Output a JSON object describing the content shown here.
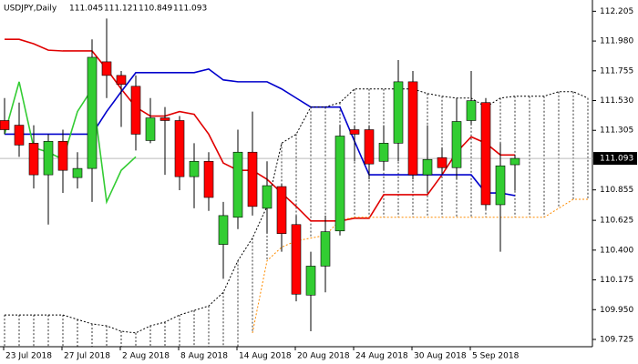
{
  "chart_data": {
    "type": "candlestick",
    "title": "USDJPY,Daily",
    "header_values": [
      111.045,
      111.121,
      110.849,
      111.093
    ],
    "categories": [
      "23 Jul 2018",
      null,
      null,
      null,
      "27 Jul 2018",
      null,
      null,
      null,
      "2 Aug 2018",
      null,
      null,
      null,
      "8 Aug 2018",
      null,
      null,
      null,
      "14 Aug 2018",
      null,
      null,
      null,
      "20 Aug 2018",
      null,
      null,
      null,
      "24 Aug 2018",
      null,
      null,
      null,
      "30 Aug 2018",
      null,
      null,
      null,
      "5 Sep 2018",
      null,
      null,
      null,
      null,
      null,
      null,
      null,
      null
    ],
    "open": [
      111.379,
      111.344,
      111.208,
      110.969,
      111.222,
      110.948,
      111.017,
      111.823,
      111.72,
      111.638,
      111.228,
      111.399,
      111.379,
      110.955,
      111.071,
      110.443,
      110.648,
      111.14,
      110.716,
      110.88,
      110.593,
      110.06,
      110.279,
      110.545,
      111.31,
      111.31,
      111.071,
      111.208,
      111.672,
      110.969,
      111.099,
      111.023,
      111.379,
      111.515,
      110.743,
      111.045,
      null,
      null,
      null,
      null,
      null
    ],
    "high": [
      111.549,
      111.515,
      111.344,
      111.276,
      111.31,
      111.14,
      111.993,
      112.15,
      111.754,
      111.72,
      111.549,
      111.481,
      111.413,
      111.208,
      111.14,
      110.764,
      111.31,
      111.447,
      111.071,
      110.901,
      110.661,
      110.388,
      110.661,
      111.344,
      111.344,
      111.344,
      111.344,
      111.836,
      111.754,
      111.344,
      111.174,
      111.549,
      111.754,
      111.549,
      111.208,
      111.121,
      null,
      null,
      null,
      null,
      null
    ],
    "low": [
      111.276,
      111.105,
      110.866,
      110.593,
      110.832,
      110.866,
      110.764,
      111.549,
      111.331,
      111.153,
      111.208,
      110.969,
      110.853,
      110.716,
      110.696,
      110.183,
      110.559,
      110.661,
      110.525,
      110.388,
      110.013,
      109.787,
      110.081,
      110.511,
      111.071,
      110.935,
      111.003,
      111.071,
      110.935,
      110.832,
      110.969,
      110.935,
      111.344,
      110.709,
      110.388,
      110.849,
      null,
      null,
      null,
      null,
      null
    ],
    "close": [
      111.31,
      111.194,
      110.969,
      111.222,
      111.003,
      111.017,
      111.857,
      111.72,
      111.652,
      111.276,
      111.399,
      111.379,
      110.955,
      111.071,
      110.798,
      110.661,
      111.14,
      110.73,
      110.887,
      110.525,
      110.067,
      110.279,
      110.539,
      111.262,
      111.276,
      111.051,
      111.208,
      111.672,
      110.969,
      111.085,
      111.023,
      111.372,
      111.529,
      110.743,
      111.037,
      111.093,
      null,
      null,
      null,
      null,
      null
    ],
    "up_color": "#32cd32",
    "down_color": "#ff0000",
    "lines": [
      {
        "color": "#e00000",
        "dash": "none",
        "values": [
          111.993,
          111.993,
          111.959,
          111.911,
          111.905,
          111.905,
          111.905,
          111.768,
          111.618,
          111.481,
          111.413,
          111.413,
          111.447,
          111.426,
          111.276,
          111.058,
          111.003,
          111.003,
          110.935,
          110.832,
          110.73,
          110.62,
          110.62,
          110.62,
          110.641,
          110.641,
          110.819,
          110.819,
          110.819,
          110.819,
          110.969,
          111.14,
          111.256,
          111.208,
          111.119,
          111.119,
          null,
          null,
          null,
          null,
          null
        ]
      },
      {
        "color": "#0000cc",
        "dash": "none",
        "values": [
          111.276,
          111.276,
          111.276,
          111.276,
          111.276,
          111.276,
          111.276,
          111.447,
          111.597,
          111.741,
          111.741,
          111.741,
          111.741,
          111.741,
          111.768,
          111.686,
          111.672,
          111.672,
          111.672,
          111.618,
          111.549,
          111.481,
          111.481,
          111.481,
          111.222,
          110.969,
          110.969,
          110.969,
          110.969,
          110.969,
          110.969,
          110.969,
          110.969,
          110.832,
          110.832,
          110.812,
          null,
          null,
          null,
          null,
          null
        ]
      },
      {
        "color": "#33cc33",
        "dash": "none",
        "values": [
          111.276,
          111.672,
          111.174,
          111.14,
          111.085,
          111.447,
          111.618,
          110.764,
          111.003,
          111.105,
          null,
          null,
          null,
          null,
          null,
          null,
          null,
          null,
          null,
          null,
          null,
          null,
          null,
          null,
          null,
          null,
          null,
          null,
          null,
          null,
          null,
          null,
          null,
          null,
          null,
          null,
          null,
          null,
          null,
          null,
          null
        ]
      },
      {
        "color": "#ff8c00",
        "dash": "2 2",
        "values": [
          null,
          null,
          null,
          null,
          null,
          null,
          null,
          null,
          null,
          null,
          null,
          null,
          null,
          null,
          null,
          null,
          null,
          109.774,
          110.32,
          110.422,
          110.47,
          110.491,
          110.511,
          110.627,
          110.648,
          110.648,
          110.648,
          110.648,
          110.648,
          110.648,
          110.648,
          110.648,
          110.648,
          110.648,
          110.648,
          110.648,
          110.648,
          110.648,
          110.716,
          110.784,
          110.784
        ]
      },
      {
        "color": "#000000",
        "dash": "2 2",
        "values": [
          109.91,
          109.91,
          109.91,
          109.91,
          109.91,
          109.876,
          109.842,
          109.828,
          109.787,
          109.774,
          109.828,
          109.856,
          109.91,
          109.944,
          109.978,
          110.081,
          110.32,
          110.491,
          110.73,
          111.208,
          111.276,
          111.481,
          111.481,
          111.515,
          111.618,
          111.618,
          111.618,
          111.618,
          111.618,
          111.583,
          111.563,
          111.549,
          111.549,
          111.481,
          111.549,
          111.563,
          111.563,
          111.563,
          111.597,
          111.597,
          111.549
        ]
      }
    ],
    "ylim": [
      109.67,
      112.29
    ],
    "yticks": [
      112.205,
      {
        "value": 111.98,
        "label": "111.980"
      },
      111.755,
      {
        "value": 111.53,
        "label": "111.530"
      },
      111.305,
      110.855,
      110.625,
      {
        "value": 110.4,
        "label": "110.400"
      },
      110.175,
      {
        "value": 109.95,
        "label": "109.950"
      },
      109.725
    ]
  }
}
